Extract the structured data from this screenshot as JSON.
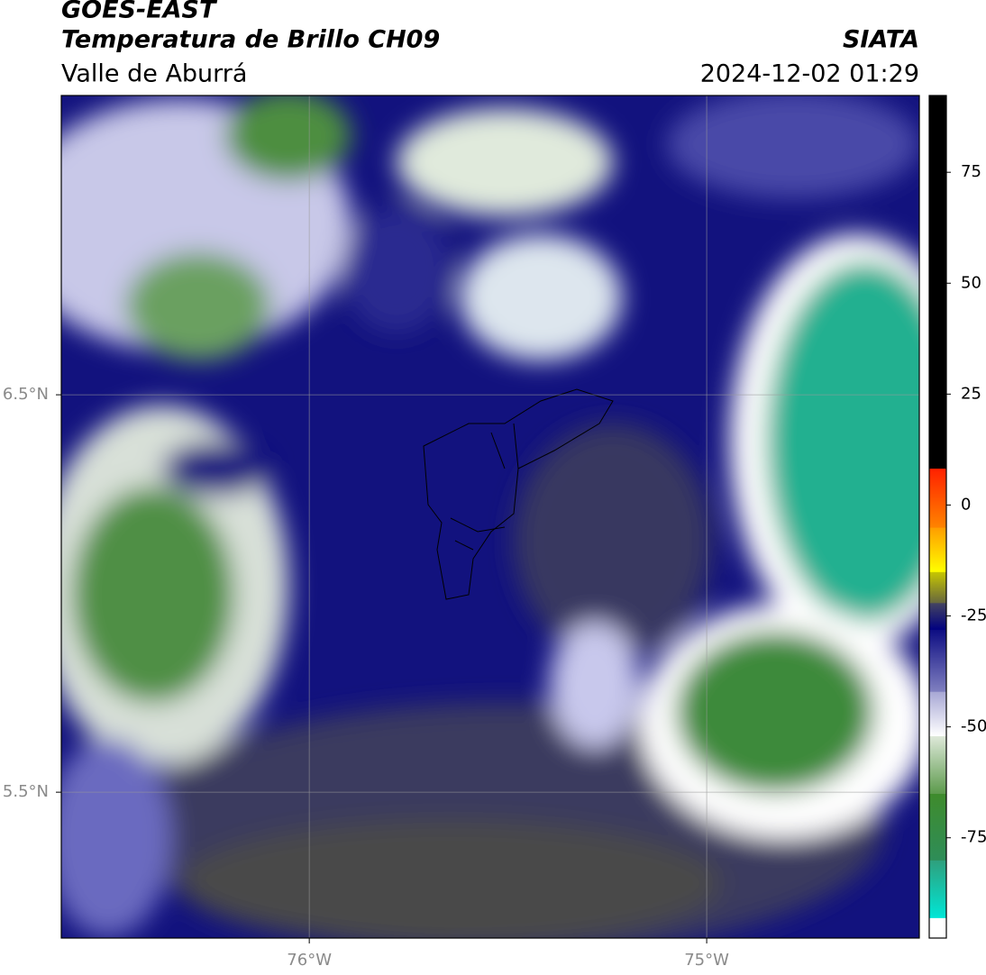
{
  "header": {
    "satellite": "GOES-EAST",
    "product": "Temperatura de Brillo CH09",
    "organization": "SIATA",
    "region": "Valle de Aburrá",
    "timestamp": "2024-12-02 01:29"
  },
  "map": {
    "xlim": [
      -76.624,
      -74.465
    ],
    "ylim": [
      5.133,
      7.253
    ],
    "xticks": [
      {
        "value": -76,
        "label": "76°W"
      },
      {
        "value": -75,
        "label": "75°W"
      }
    ],
    "yticks": [
      {
        "value": 6.5,
        "label": "6.5°N"
      },
      {
        "value": 5.5,
        "label": "5.5°N"
      }
    ],
    "grid": true
  },
  "colorbar": {
    "lim": [
      -97.6,
      92.3
    ],
    "ticks": [
      75,
      50,
      25,
      0,
      -25,
      -50,
      -75
    ],
    "segments": [
      {
        "from": -97.6,
        "to": -93,
        "colors": [
          "#ffffff",
          "#ffffff"
        ]
      },
      {
        "from": -93,
        "to": -80,
        "colors": [
          "#00e6d6",
          "#2f9f7c"
        ]
      },
      {
        "from": -80,
        "to": -65,
        "colors": [
          "#2e8d58",
          "#3f8b2c"
        ]
      },
      {
        "from": -65,
        "to": -52,
        "colors": [
          "#5c9a4c",
          "#dfe9da"
        ]
      },
      {
        "from": -52,
        "to": -42,
        "colors": [
          "#ffffff",
          "#a6a6d4"
        ]
      },
      {
        "from": -42,
        "to": -28,
        "colors": [
          "#8080c0",
          "#0c0c82"
        ]
      },
      {
        "from": -28,
        "to": -22,
        "colors": [
          "#000080",
          "#454560"
        ]
      },
      {
        "from": -22,
        "to": -15,
        "colors": [
          "#66663e",
          "#c8c800"
        ]
      },
      {
        "from": -15,
        "to": -5,
        "colors": [
          "#ffff00",
          "#ff9c00"
        ]
      },
      {
        "from": -5,
        "to": 8.3,
        "colors": [
          "#ff8400",
          "#ff2000"
        ]
      },
      {
        "from": 8.3,
        "to": 92.3,
        "colors": [
          "#000000",
          "#000000"
        ]
      }
    ]
  }
}
